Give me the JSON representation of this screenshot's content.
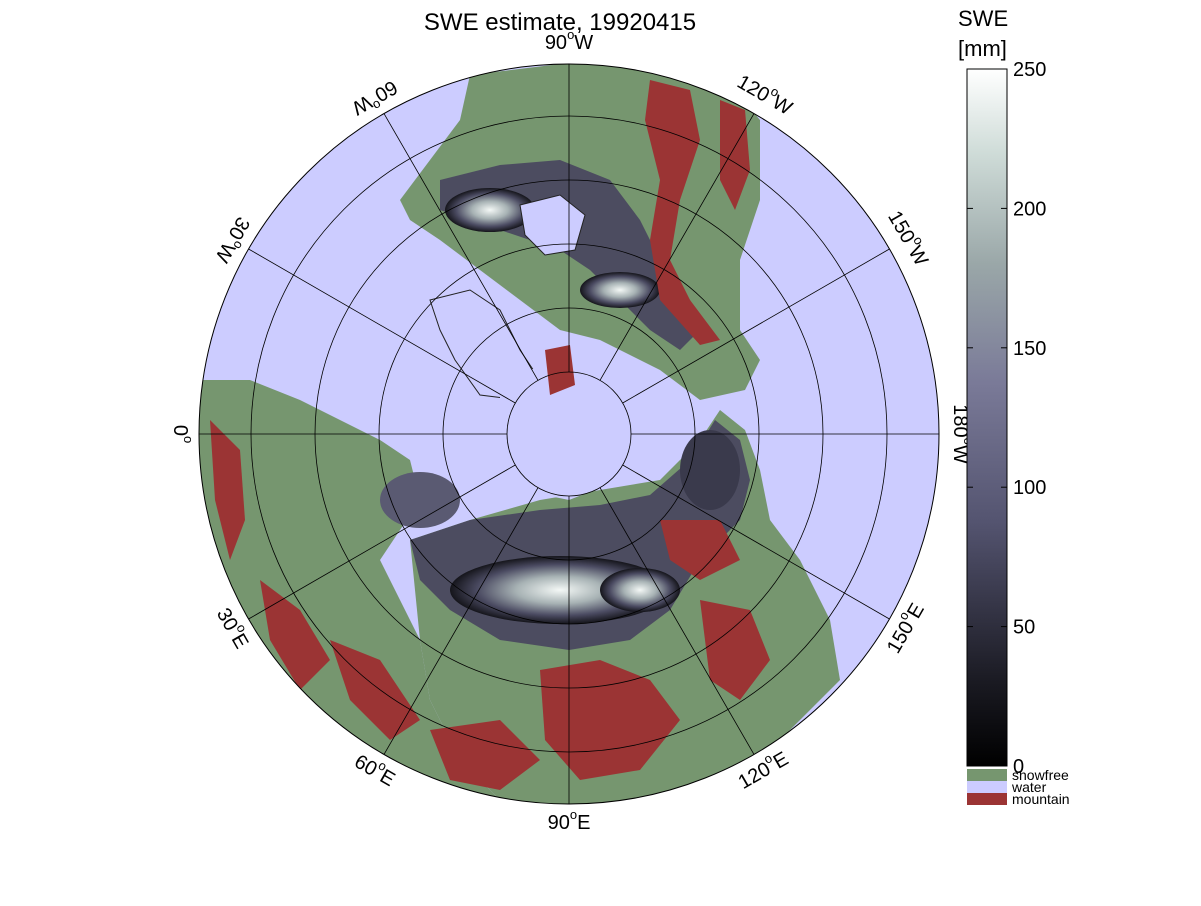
{
  "title": "SWE estimate, 19920415",
  "map": {
    "projection": "polar stereographic, north pole centered",
    "longitude_labels": [
      {
        "deg": "90",
        "hemi": "W"
      },
      {
        "deg": "120",
        "hemi": "W"
      },
      {
        "deg": "150",
        "hemi": "W"
      },
      {
        "deg": "180",
        "hemi": "W"
      },
      {
        "deg": "150",
        "hemi": "E"
      },
      {
        "deg": "120",
        "hemi": "E"
      },
      {
        "deg": "90",
        "hemi": "E"
      },
      {
        "deg": "60",
        "hemi": "E"
      },
      {
        "deg": "30",
        "hemi": "E"
      },
      {
        "deg": "0",
        "hemi": ""
      },
      {
        "deg": "30",
        "hemi": "W"
      },
      {
        "deg": "60",
        "hemi": "W"
      }
    ]
  },
  "colorbar": {
    "title_line1": "SWE",
    "title_line2": "[mm]",
    "ticks": [
      "0",
      "50",
      "100",
      "150",
      "200",
      "250"
    ],
    "range": [
      0,
      250
    ],
    "categories": [
      {
        "label": "snowfree",
        "color": "#76966f"
      },
      {
        "label": "water",
        "color": "#ccccff"
      },
      {
        "label": "mountain",
        "color": "#9b3434"
      }
    ]
  },
  "colors": {
    "water": "#ccccff",
    "land": "#76966f",
    "mountain": "#9b3434",
    "swe_low": "#0a0a0e",
    "swe_mid": "#6a6a86",
    "swe_high": "#f4f8f6"
  }
}
